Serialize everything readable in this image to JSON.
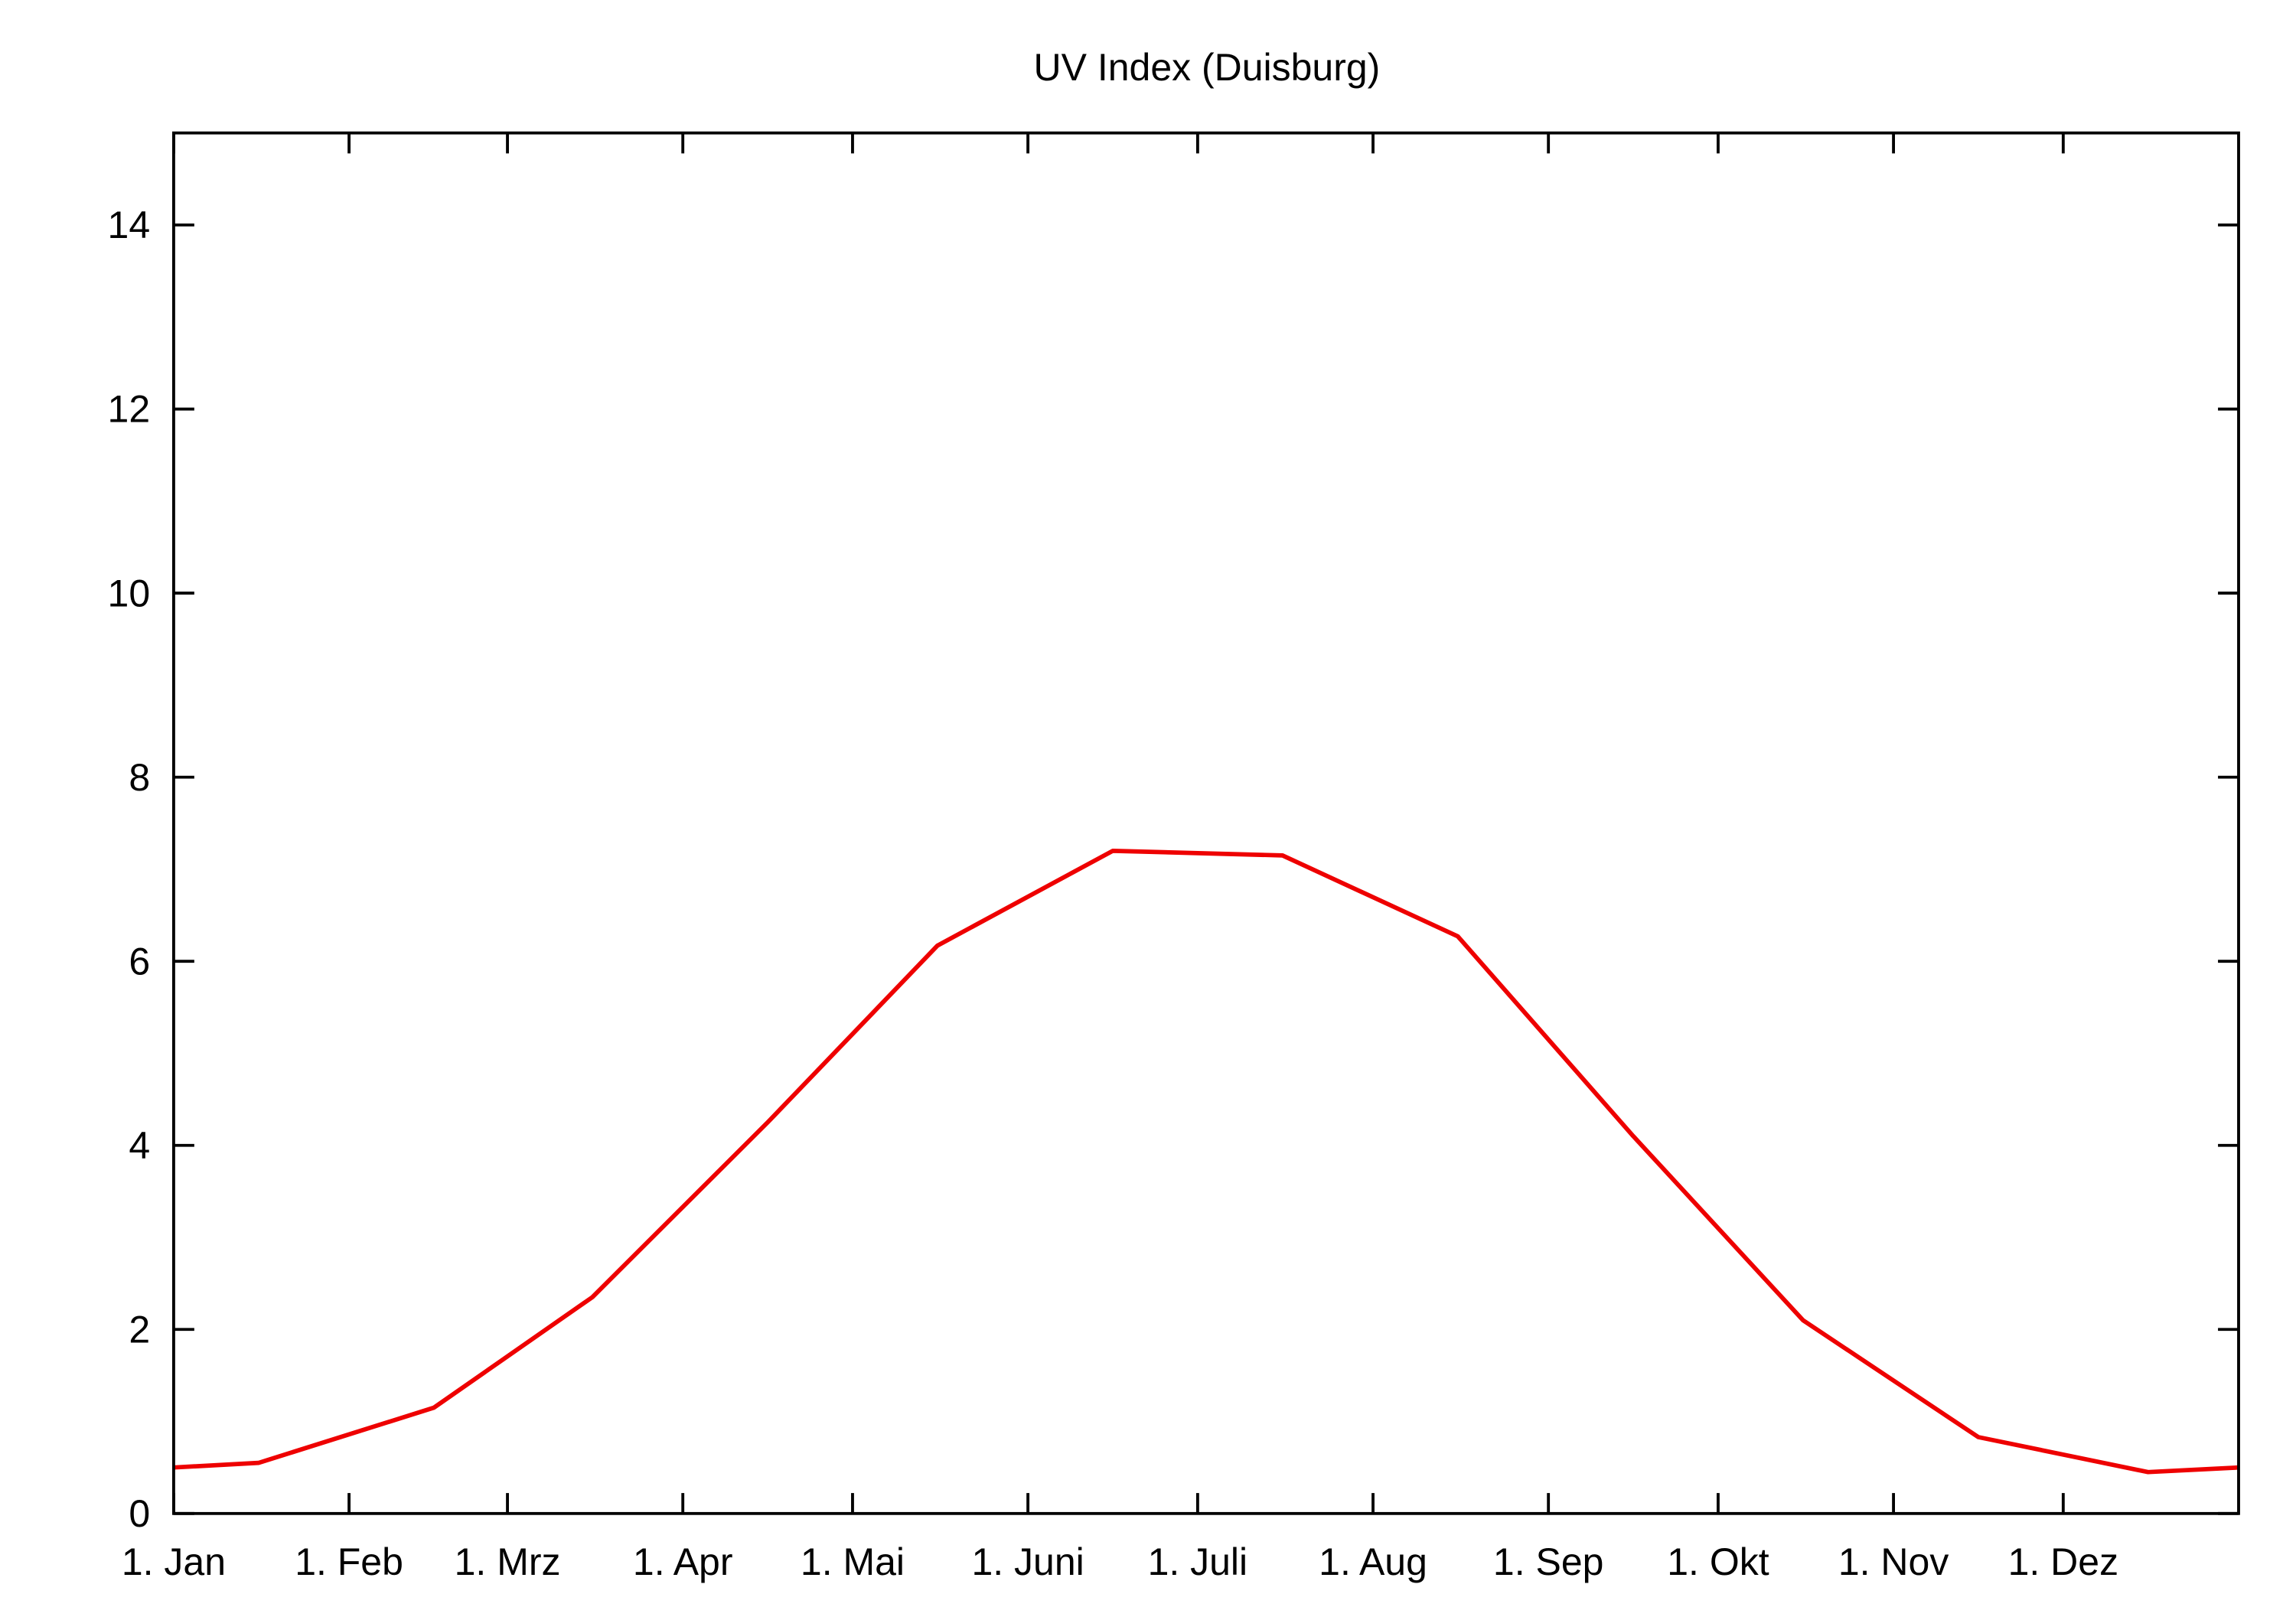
{
  "chart_data": {
    "type": "line",
    "title": "UV Index (Duisburg)",
    "xlabel": "",
    "ylabel": "",
    "xlim": [
      0,
      365
    ],
    "ylim": [
      0,
      15
    ],
    "grid": false,
    "x_unit": "day of year",
    "x_ticks": [
      {
        "day": 0,
        "label": "1. Jan"
      },
      {
        "day": 31,
        "label": "1. Feb"
      },
      {
        "day": 59,
        "label": "1. Mrz"
      },
      {
        "day": 90,
        "label": "1. Apr"
      },
      {
        "day": 120,
        "label": "1. Mai"
      },
      {
        "day": 151,
        "label": "1. Juni"
      },
      {
        "day": 181,
        "label": "1. Juli"
      },
      {
        "day": 212,
        "label": "1. Aug"
      },
      {
        "day": 243,
        "label": "1. Sep"
      },
      {
        "day": 273,
        "label": "1. Okt"
      },
      {
        "day": 304,
        "label": "1. Nov"
      },
      {
        "day": 334,
        "label": "1. Dez"
      }
    ],
    "y_ticks": [
      0,
      2,
      4,
      6,
      8,
      10,
      12,
      14
    ],
    "series": [
      {
        "name": "UV Index",
        "color": "#ee0000",
        "x": [
          0,
          15,
          46,
          74,
          105,
          135,
          166,
          196,
          227,
          258,
          288,
          319,
          349,
          365
        ],
        "y": [
          0.5,
          0.55,
          1.15,
          2.35,
          4.25,
          6.17,
          7.2,
          7.15,
          6.27,
          4.1,
          2.1,
          0.83,
          0.45,
          0.5
        ]
      }
    ]
  }
}
